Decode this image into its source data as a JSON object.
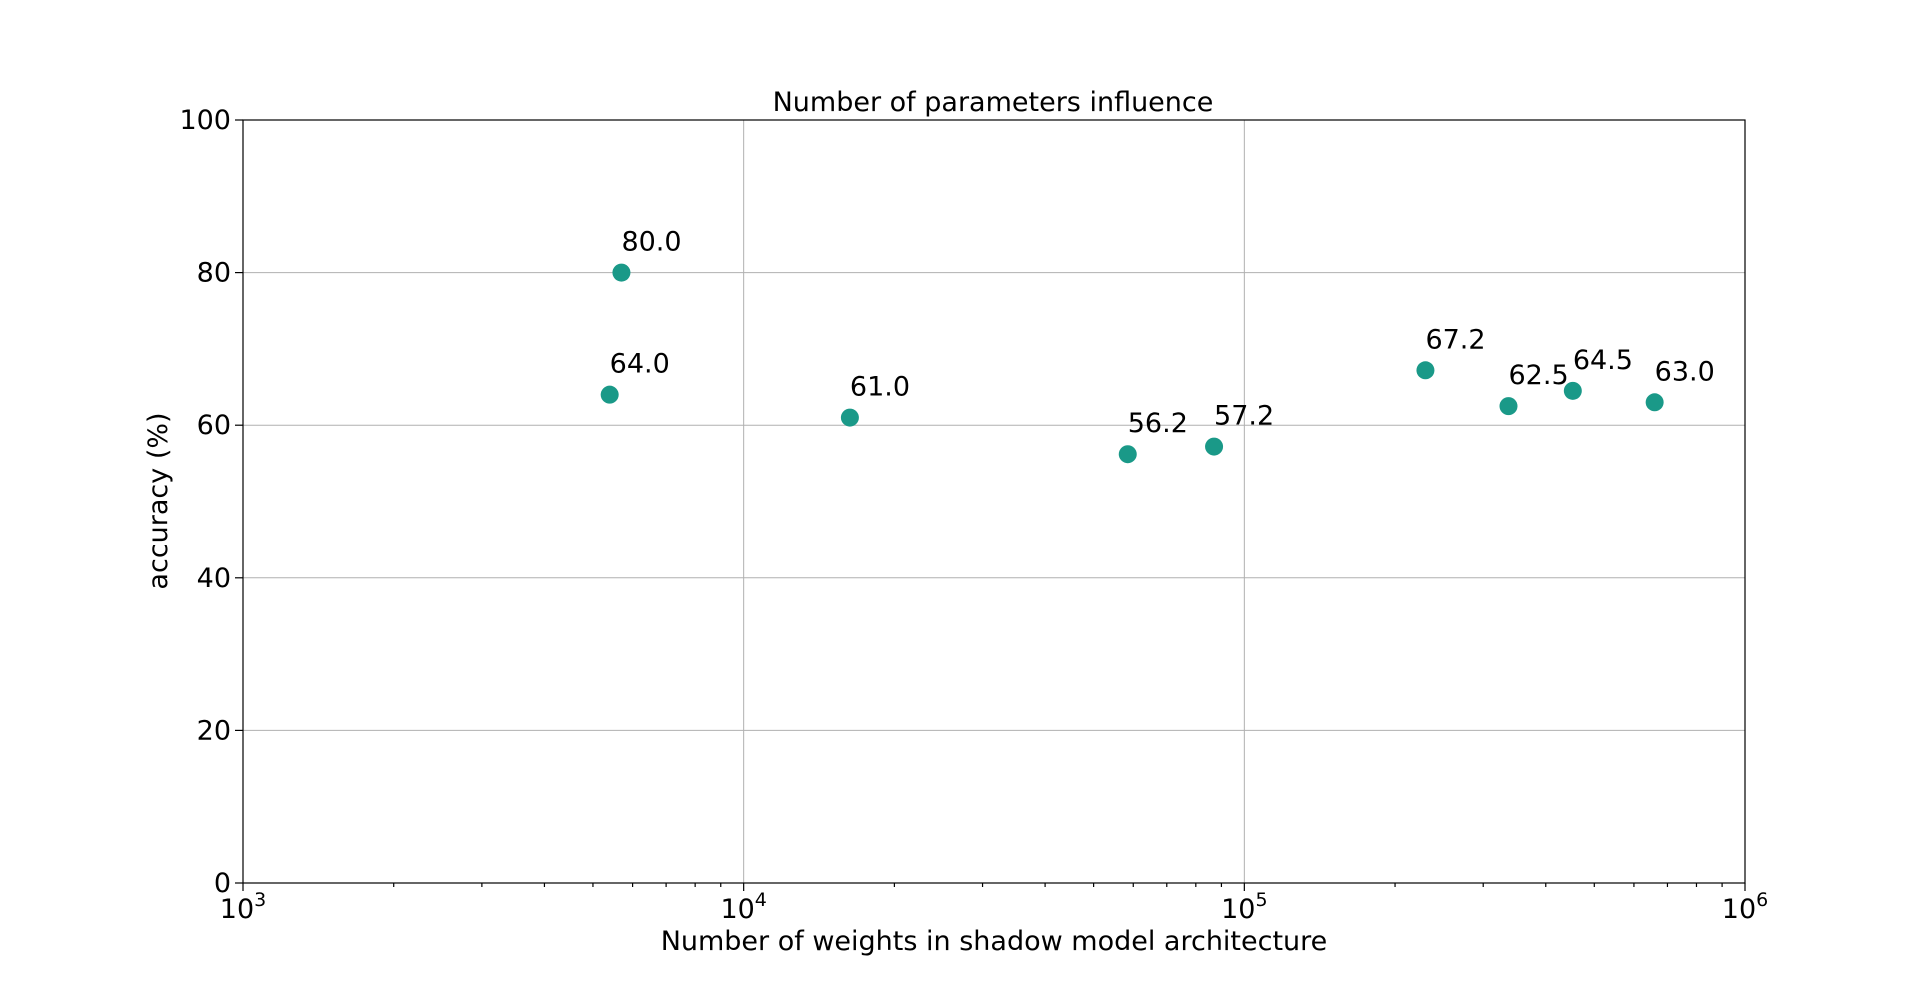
{
  "chart_data": {
    "type": "scatter",
    "title": "Number of parameters influence",
    "xlabel": "Number of weights in shadow model architecture",
    "ylabel": "accuracy (%)",
    "xscale": "log",
    "xlim": [
      1000,
      1000000
    ],
    "ylim": [
      0,
      100
    ],
    "grid": true,
    "x_tick_labels": [
      {
        "value": 1000,
        "base": "10",
        "exp": "3"
      },
      {
        "value": 10000,
        "base": "10",
        "exp": "4"
      },
      {
        "value": 100000,
        "base": "10",
        "exp": "5"
      },
      {
        "value": 1000000,
        "base": "10",
        "exp": "6"
      }
    ],
    "y_ticks": [
      "0",
      "20",
      "40",
      "60",
      "80",
      "100"
    ],
    "marker_color": "#1a9988",
    "points": [
      {
        "x": 5700,
        "y": 80.0,
        "label": "80.0"
      },
      {
        "x": 5400,
        "y": 64.0,
        "label": "64.0"
      },
      {
        "x": 16300,
        "y": 61.0,
        "label": "61.0"
      },
      {
        "x": 58500,
        "y": 56.2,
        "label": "56.2"
      },
      {
        "x": 87000,
        "y": 57.2,
        "label": "57.2"
      },
      {
        "x": 230000,
        "y": 67.2,
        "label": "67.2"
      },
      {
        "x": 337000,
        "y": 62.5,
        "label": "62.5"
      },
      {
        "x": 453000,
        "y": 64.5,
        "label": "64.5"
      },
      {
        "x": 660000,
        "y": 63.0,
        "label": "63.0"
      }
    ]
  }
}
